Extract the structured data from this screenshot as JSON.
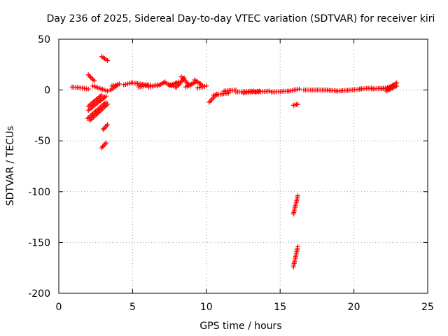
{
  "chart_data": {
    "type": "scatter",
    "title": "Day 236 of 2025, Sidereal Day-to-day VTEC variation (SDTVAR) for receiver kiri",
    "xlabel": "GPS time / hours",
    "ylabel": "SDTVAR / TECUs",
    "xlim": [
      0,
      25
    ],
    "ylim": [
      -200,
      50
    ],
    "xticks": [
      0,
      5,
      10,
      15,
      20,
      25
    ],
    "yticks": [
      -200,
      -150,
      -100,
      -50,
      0,
      50
    ],
    "grid": true,
    "marker": "+",
    "series_color": "#ff0000",
    "segments": [
      {
        "x": [
          0.9,
          1.6
        ],
        "y": [
          3,
          2
        ]
      },
      {
        "x": [
          1.6,
          2.0
        ],
        "y": [
          2,
          1
        ]
      },
      {
        "x": [
          2.0,
          2.4
        ],
        "y": [
          15,
          9
        ]
      },
      {
        "x": [
          2.0,
          3.2
        ],
        "y": [
          -20,
          -6
        ]
      },
      {
        "x": [
          1.95,
          3.2
        ],
        "y": [
          -28,
          -12
        ]
      },
      {
        "x": [
          2.1,
          3.3
        ],
        "y": [
          -30,
          -14
        ]
      },
      {
        "x": [
          2.0,
          2.9
        ],
        "y": [
          -16,
          -5
        ]
      },
      {
        "x": [
          2.3,
          3.3
        ],
        "y": [
          4,
          -1
        ]
      },
      {
        "x": [
          2.9,
          3.3
        ],
        "y": [
          33,
          29
        ]
      },
      {
        "x": [
          3.0,
          3.3
        ],
        "y": [
          -39,
          -34
        ]
      },
      {
        "x": [
          2.9,
          3.2
        ],
        "y": [
          -57,
          -52
        ]
      },
      {
        "x": [
          3.5,
          4.0
        ],
        "y": [
          0,
          5
        ]
      },
      {
        "x": [
          3.6,
          4.1
        ],
        "y": [
          4,
          6
        ]
      },
      {
        "x": [
          4.4,
          4.9
        ],
        "y": [
          5,
          7
        ]
      },
      {
        "x": [
          5.0,
          6.0
        ],
        "y": [
          7,
          5
        ]
      },
      {
        "x": [
          5.4,
          6.2
        ],
        "y": [
          3,
          5
        ]
      },
      {
        "x": [
          6.1,
          6.7
        ],
        "y": [
          3,
          5
        ]
      },
      {
        "x": [
          6.7,
          7.2
        ],
        "y": [
          4,
          8
        ]
      },
      {
        "x": [
          7.2,
          7.9
        ],
        "y": [
          7,
          3
        ]
      },
      {
        "x": [
          7.5,
          8.1
        ],
        "y": [
          4,
          8
        ]
      },
      {
        "x": [
          8.0,
          8.5
        ],
        "y": [
          3,
          12
        ]
      },
      {
        "x": [
          8.3,
          8.9
        ],
        "y": [
          13,
          4
        ]
      },
      {
        "x": [
          8.6,
          9.3
        ],
        "y": [
          3,
          8
        ]
      },
      {
        "x": [
          9.2,
          9.7
        ],
        "y": [
          10,
          5
        ]
      },
      {
        "x": [
          9.4,
          10.0
        ],
        "y": [
          2,
          4
        ]
      },
      {
        "x": [
          10.2,
          10.7
        ],
        "y": [
          -12,
          -4
        ]
      },
      {
        "x": [
          10.5,
          11.5
        ],
        "y": [
          -5,
          -3
        ]
      },
      {
        "x": [
          11.2,
          12.0
        ],
        "y": [
          -1,
          0
        ]
      },
      {
        "x": [
          12.0,
          13.2
        ],
        "y": [
          -2,
          -1
        ]
      },
      {
        "x": [
          12.5,
          13.6
        ],
        "y": [
          -3,
          -1
        ]
      },
      {
        "x": [
          13.3,
          14.3
        ],
        "y": [
          -2,
          -1
        ]
      },
      {
        "x": [
          14.4,
          15.5
        ],
        "y": [
          -2,
          -1
        ]
      },
      {
        "x": [
          15.6,
          16.3
        ],
        "y": [
          -1,
          1
        ]
      },
      {
        "x": [
          15.9,
          16.2
        ],
        "y": [
          -15,
          -14
        ]
      },
      {
        "x": [
          15.9,
          16.2
        ],
        "y": [
          -122,
          -104
        ]
      },
      {
        "x": [
          15.9,
          16.2
        ],
        "y": [
          -174,
          -154
        ]
      },
      {
        "x": [
          16.6,
          17.3
        ],
        "y": [
          0,
          0
        ]
      },
      {
        "x": [
          17.3,
          18.2
        ],
        "y": [
          0,
          0
        ]
      },
      {
        "x": [
          18.1,
          18.9
        ],
        "y": [
          0,
          -1
        ]
      },
      {
        "x": [
          18.9,
          19.8
        ],
        "y": [
          -1,
          0
        ]
      },
      {
        "x": [
          19.8,
          20.5
        ],
        "y": [
          0,
          1
        ]
      },
      {
        "x": [
          20.4,
          21.2
        ],
        "y": [
          1,
          2
        ]
      },
      {
        "x": [
          21.2,
          22.0
        ],
        "y": [
          1,
          2
        ]
      },
      {
        "x": [
          21.9,
          22.4
        ],
        "y": [
          1,
          3
        ]
      },
      {
        "x": [
          22.2,
          22.9
        ],
        "y": [
          1,
          7
        ]
      },
      {
        "x": [
          22.2,
          22.9
        ],
        "y": [
          -1,
          4
        ]
      }
    ]
  }
}
